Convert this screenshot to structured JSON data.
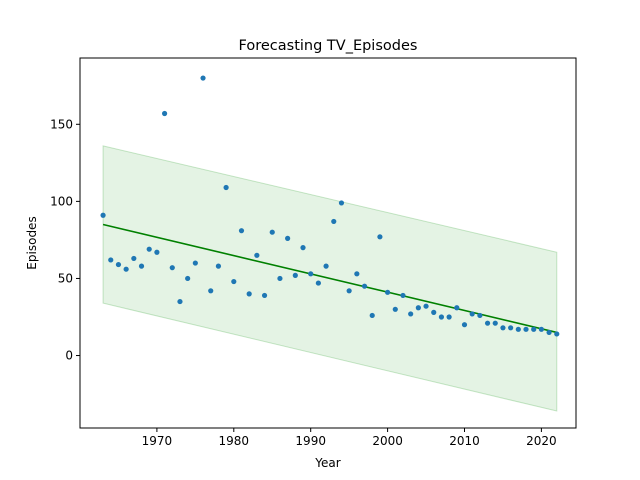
{
  "chart_data": {
    "type": "scatter",
    "title": "Forecasting TV_Episodes",
    "xlabel": "Year",
    "ylabel": "Episodes",
    "xlim": [
      1960,
      2024.5
    ],
    "ylim": [
      -47,
      193
    ],
    "xticks": [
      1970,
      1980,
      1990,
      2000,
      2010,
      2020
    ],
    "yticks": [
      0,
      50,
      100,
      150
    ],
    "grid": false,
    "series": [
      {
        "type": "scatter",
        "color": "#1f77b4",
        "points": [
          [
            1963,
            91
          ],
          [
            1964,
            62
          ],
          [
            1965,
            59
          ],
          [
            1966,
            56
          ],
          [
            1967,
            63
          ],
          [
            1968,
            58
          ],
          [
            1969,
            69
          ],
          [
            1970,
            67
          ],
          [
            1971,
            157
          ],
          [
            1972,
            57
          ],
          [
            1973,
            35
          ],
          [
            1974,
            50
          ],
          [
            1975,
            60
          ],
          [
            1976,
            180
          ],
          [
            1977,
            42
          ],
          [
            1978,
            58
          ],
          [
            1979,
            109
          ],
          [
            1980,
            48
          ],
          [
            1981,
            81
          ],
          [
            1982,
            40
          ],
          [
            1983,
            65
          ],
          [
            1984,
            39
          ],
          [
            1985,
            80
          ],
          [
            1986,
            50
          ],
          [
            1987,
            76
          ],
          [
            1988,
            52
          ],
          [
            1989,
            70
          ],
          [
            1990,
            53
          ],
          [
            1991,
            47
          ],
          [
            1992,
            58
          ],
          [
            1993,
            87
          ],
          [
            1994,
            99
          ],
          [
            1995,
            42
          ],
          [
            1996,
            53
          ],
          [
            1997,
            45
          ],
          [
            1998,
            26
          ],
          [
            1999,
            77
          ],
          [
            2000,
            41
          ],
          [
            2001,
            30
          ],
          [
            2002,
            39
          ],
          [
            2003,
            27
          ],
          [
            2004,
            31
          ],
          [
            2005,
            32
          ],
          [
            2006,
            28
          ],
          [
            2007,
            25
          ],
          [
            2008,
            25
          ],
          [
            2009,
            31
          ],
          [
            2010,
            20
          ],
          [
            2011,
            27
          ],
          [
            2012,
            26
          ],
          [
            2013,
            21
          ],
          [
            2014,
            21
          ],
          [
            2015,
            18
          ],
          [
            2016,
            18
          ],
          [
            2017,
            17
          ],
          [
            2018,
            17
          ],
          [
            2019,
            17
          ],
          [
            2020,
            17
          ],
          [
            2021,
            15
          ],
          [
            2022,
            14
          ]
        ]
      },
      {
        "type": "line",
        "color": "#008000",
        "x": [
          1963,
          2022
        ],
        "y": [
          85,
          15
        ]
      },
      {
        "type": "band",
        "color": "#2ca02c",
        "x": [
          1963,
          2022
        ],
        "upper": [
          136,
          67
        ],
        "lower": [
          34,
          -36
        ]
      }
    ]
  }
}
